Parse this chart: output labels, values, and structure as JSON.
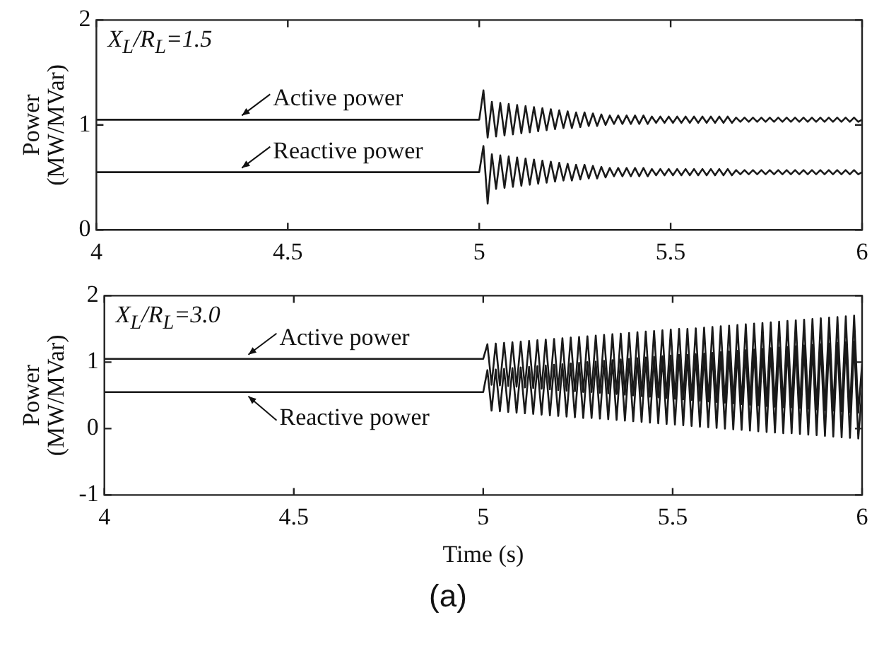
{
  "chart_data": [
    {
      "type": "line",
      "ylabel": "Power\n(MW/MVar)",
      "annotations": [
        "X$_{L}$/R$_{L}$=1.5"
      ],
      "xlim": [
        4,
        6
      ],
      "xticks": [
        4,
        4.5,
        5,
        5.5,
        6
      ],
      "ylim": [
        0,
        2
      ],
      "yticks": [
        0,
        1,
        2
      ],
      "grid": false,
      "legend": "left",
      "marker": "none",
      "x": [
        4,
        5,
        5.011,
        5.022,
        5.033,
        5.044,
        5.055,
        5.066,
        5.077,
        5.088,
        5.099,
        5.11,
        5.121,
        5.132,
        5.143,
        5.154,
        5.165,
        5.176,
        5.187,
        5.198,
        5.209,
        5.22,
        5.231,
        5.242,
        5.253,
        5.264,
        5.275,
        5.286,
        5.297,
        5.308,
        5.319,
        5.33,
        5.341,
        5.352,
        5.363,
        5.374,
        5.385,
        5.396,
        5.407,
        5.418,
        5.429,
        5.44,
        5.451,
        5.462,
        5.473,
        5.484,
        5.495,
        5.506,
        5.517,
        5.528,
        5.539,
        5.55,
        5.561,
        5.572,
        5.583,
        5.594,
        5.605,
        5.616,
        5.627,
        5.638,
        5.649,
        5.66,
        5.671,
        5.682,
        5.693,
        5.704,
        5.715,
        5.726,
        5.737,
        5.748,
        5.759,
        5.77,
        5.781,
        5.792,
        5.803,
        5.814,
        5.825,
        5.836,
        5.847,
        5.858,
        5.869,
        5.88,
        5.891,
        5.902,
        5.913,
        5.924,
        5.935,
        5.946,
        5.957,
        5.968,
        5.979,
        5.99,
        6
      ],
      "series": [
        {
          "name": "Active power",
          "color": "#1a1a1a",
          "values": [
            1.05,
            1.05,
            1.33,
            0.88,
            1.22,
            0.89,
            1.21,
            0.9,
            1.2,
            0.91,
            1.19,
            0.92,
            1.18,
            0.93,
            1.17,
            0.94,
            1.16,
            0.95,
            1.15,
            0.96,
            1.14,
            0.97,
            1.13,
            0.97,
            1.12,
            0.98,
            1.12,
            0.99,
            1.11,
            0.99,
            1.1,
            1.0,
            1.09,
            1.01,
            1.09,
            1.01,
            1.09,
            1.01,
            1.09,
            1.01,
            1.09,
            1.01,
            1.08,
            1.02,
            1.08,
            1.02,
            1.08,
            1.02,
            1.08,
            1.02,
            1.08,
            1.02,
            1.08,
            1.02,
            1.08,
            1.02,
            1.08,
            1.02,
            1.08,
            1.02,
            1.08,
            1.02,
            1.07,
            1.03,
            1.07,
            1.03,
            1.07,
            1.03,
            1.07,
            1.03,
            1.07,
            1.03,
            1.07,
            1.03,
            1.07,
            1.03,
            1.07,
            1.03,
            1.07,
            1.03,
            1.07,
            1.03,
            1.07,
            1.03,
            1.07,
            1.03,
            1.07,
            1.03,
            1.07,
            1.03,
            1.07,
            1.03,
            1.05
          ]
        },
        {
          "name": "Reactive power",
          "color": "#1a1a1a",
          "values": [
            0.55,
            0.55,
            0.8,
            0.25,
            0.72,
            0.39,
            0.71,
            0.4,
            0.7,
            0.41,
            0.69,
            0.42,
            0.68,
            0.43,
            0.67,
            0.44,
            0.66,
            0.45,
            0.65,
            0.46,
            0.64,
            0.47,
            0.63,
            0.47,
            0.62,
            0.48,
            0.62,
            0.49,
            0.61,
            0.49,
            0.6,
            0.5,
            0.59,
            0.51,
            0.59,
            0.51,
            0.59,
            0.51,
            0.59,
            0.51,
            0.59,
            0.51,
            0.58,
            0.52,
            0.58,
            0.52,
            0.58,
            0.52,
            0.58,
            0.52,
            0.58,
            0.52,
            0.58,
            0.52,
            0.58,
            0.52,
            0.58,
            0.52,
            0.58,
            0.52,
            0.58,
            0.52,
            0.57,
            0.53,
            0.57,
            0.53,
            0.57,
            0.53,
            0.57,
            0.53,
            0.57,
            0.53,
            0.57,
            0.53,
            0.57,
            0.53,
            0.57,
            0.53,
            0.57,
            0.53,
            0.57,
            0.53,
            0.57,
            0.53,
            0.57,
            0.53,
            0.57,
            0.53,
            0.57,
            0.53,
            0.57,
            0.53,
            0.55
          ]
        }
      ]
    },
    {
      "type": "line",
      "xlabel": "Time (s)",
      "ylabel": "Power\n(MW/MVar)",
      "annotations": [
        "X$_{L}$/R$_{L}$=3.0",
        "(a)"
      ],
      "xlim": [
        4,
        6
      ],
      "xticks": [
        4,
        4.5,
        5,
        5.5,
        6
      ],
      "ylim": [
        -1,
        2
      ],
      "yticks": [
        -1,
        0,
        1,
        2
      ],
      "grid": false,
      "legend": "left",
      "marker": "none",
      "x": [
        4,
        5,
        5.011,
        5.022,
        5.033,
        5.044,
        5.055,
        5.066,
        5.077,
        5.088,
        5.099,
        5.11,
        5.121,
        5.132,
        5.143,
        5.154,
        5.165,
        5.176,
        5.187,
        5.198,
        5.209,
        5.22,
        5.231,
        5.242,
        5.253,
        5.264,
        5.275,
        5.286,
        5.297,
        5.308,
        5.319,
        5.33,
        5.341,
        5.352,
        5.363,
        5.374,
        5.385,
        5.396,
        5.407,
        5.418,
        5.429,
        5.44,
        5.451,
        5.462,
        5.473,
        5.484,
        5.495,
        5.506,
        5.517,
        5.528,
        5.539,
        5.55,
        5.561,
        5.572,
        5.583,
        5.594,
        5.605,
        5.616,
        5.627,
        5.638,
        5.649,
        5.66,
        5.671,
        5.682,
        5.693,
        5.704,
        5.715,
        5.726,
        5.737,
        5.748,
        5.759,
        5.77,
        5.781,
        5.792,
        5.803,
        5.814,
        5.825,
        5.836,
        5.847,
        5.858,
        5.869,
        5.88,
        5.891,
        5.902,
        5.913,
        5.924,
        5.935,
        5.946,
        5.957,
        5.968,
        5.979,
        5.99,
        6
      ],
      "series": [
        {
          "name": "Active power",
          "color": "#1a1a1a",
          "values": [
            1.05,
            1.05,
            1.27,
            0.66,
            1.28,
            0.65,
            1.29,
            0.64,
            1.3,
            0.63,
            1.31,
            0.62,
            1.32,
            0.61,
            1.33,
            0.6,
            1.34,
            0.59,
            1.35,
            0.58,
            1.36,
            0.57,
            1.37,
            0.56,
            1.38,
            0.55,
            1.39,
            0.55,
            1.4,
            0.54,
            1.41,
            0.53,
            1.42,
            0.52,
            1.43,
            0.51,
            1.44,
            0.5,
            1.45,
            0.49,
            1.46,
            0.48,
            1.47,
            0.47,
            1.48,
            0.46,
            1.49,
            0.45,
            1.5,
            0.44,
            1.5,
            0.43,
            1.51,
            0.42,
            1.52,
            0.41,
            1.53,
            0.4,
            1.54,
            0.39,
            1.55,
            0.38,
            1.56,
            0.37,
            1.57,
            0.36,
            1.58,
            0.35,
            1.59,
            0.34,
            1.6,
            0.33,
            1.61,
            0.32,
            1.62,
            0.32,
            1.63,
            0.31,
            1.64,
            0.3,
            1.65,
            0.29,
            1.66,
            0.28,
            1.67,
            0.27,
            1.68,
            0.26,
            1.69,
            0.25,
            1.7,
            0.24,
            0.97
          ]
        },
        {
          "name": "Reactive power",
          "color": "#1a1a1a",
          "values": [
            0.55,
            0.55,
            0.88,
            0.27,
            0.89,
            0.26,
            0.9,
            0.25,
            0.91,
            0.24,
            0.92,
            0.23,
            0.93,
            0.22,
            0.94,
            0.21,
            0.95,
            0.2,
            0.96,
            0.19,
            0.97,
            0.18,
            0.98,
            0.17,
            0.99,
            0.16,
            1.0,
            0.16,
            1.01,
            0.15,
            1.02,
            0.14,
            1.03,
            0.13,
            1.04,
            0.12,
            1.05,
            0.11,
            1.06,
            0.1,
            1.07,
            0.09,
            1.08,
            0.08,
            1.09,
            0.07,
            1.1,
            0.06,
            1.11,
            0.05,
            1.11,
            0.04,
            1.12,
            0.03,
            1.13,
            0.02,
            1.14,
            0.01,
            1.15,
            0.0,
            1.16,
            -0.01,
            1.17,
            -0.02,
            1.18,
            -0.03,
            1.19,
            -0.04,
            1.2,
            -0.05,
            1.21,
            -0.06,
            1.22,
            -0.07,
            1.23,
            -0.07,
            1.24,
            -0.08,
            1.25,
            -0.09,
            1.26,
            -0.1,
            1.27,
            -0.11,
            1.28,
            -0.12,
            1.29,
            -0.13,
            1.3,
            -0.14,
            1.31,
            -0.15,
            0.58
          ]
        }
      ]
    }
  ]
}
